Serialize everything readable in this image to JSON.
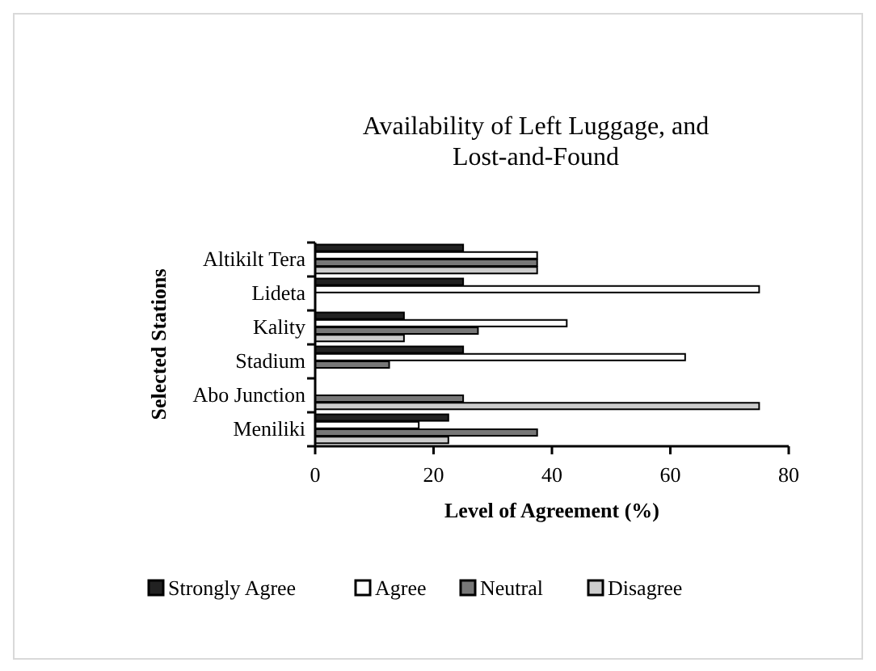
{
  "chart_data": {
    "type": "bar",
    "orientation": "horizontal",
    "title": "Availability of Left Luggage, and Lost-and-Found",
    "xlabel": "Level of Agreement (%)",
    "ylabel": "Selected Stations",
    "categories": [
      "Altikilt Tera",
      "Lideta",
      "Kality",
      "Stadium",
      "Abo Junction",
      "Meniliki"
    ],
    "series": [
      {
        "name": "Strongly Agree",
        "color": "#222222",
        "values": [
          25,
          25,
          15,
          25,
          0,
          22.5
        ]
      },
      {
        "name": "Agree",
        "color": "#ffffff",
        "values": [
          37.5,
          75,
          42.5,
          62.5,
          0,
          17.5
        ]
      },
      {
        "name": "Neutral",
        "color": "#777777",
        "values": [
          37.5,
          0,
          27.5,
          12.5,
          25,
          37.5
        ]
      },
      {
        "name": "Disagree",
        "color": "#cccccc",
        "values": [
          37.5,
          0,
          15,
          0,
          75,
          22.5
        ]
      }
    ],
    "xlim": [
      0,
      80
    ],
    "xticks": [
      0,
      20,
      40,
      60,
      80
    ],
    "grid": false,
    "legend": "bottom"
  }
}
